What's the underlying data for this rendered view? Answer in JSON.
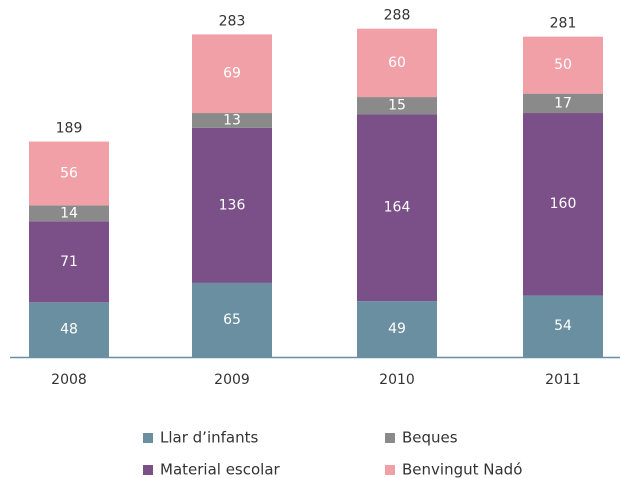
{
  "chart_data": {
    "type": "stacked-bar",
    "categories": [
      "2008",
      "2009",
      "2010",
      "2011"
    ],
    "series": [
      {
        "name": "Llar d’infants",
        "color": "#6a8fa0",
        "values": [
          48,
          65,
          49,
          54
        ]
      },
      {
        "name": "Material escolar",
        "color": "#7b4f88",
        "values": [
          71,
          136,
          164,
          160
        ]
      },
      {
        "name": "Beques",
        "color": "#8a8a8a",
        "values": [
          14,
          13,
          15,
          17
        ]
      },
      {
        "name": "Benvingut Nadó",
        "color": "#f2a0a8",
        "values": [
          56,
          69,
          60,
          50
        ]
      }
    ],
    "totals": [
      189,
      283,
      288,
      281
    ]
  }
}
